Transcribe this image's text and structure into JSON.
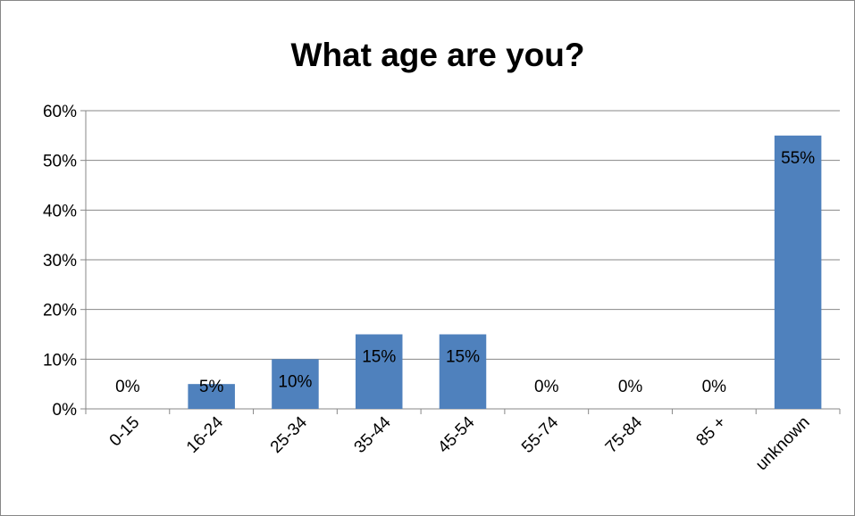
{
  "chart_data": {
    "type": "bar",
    "title": "What age are you?",
    "xlabel": "",
    "ylabel": "",
    "categories": [
      "0-15",
      "16-24",
      "25-34",
      "35-44",
      "45-54",
      "55-74",
      "75-84",
      "85 +",
      "unknown"
    ],
    "values": [
      0,
      5,
      10,
      15,
      15,
      0,
      0,
      0,
      55
    ],
    "data_labels": [
      "0%",
      "5%",
      "10%",
      "15%",
      "15%",
      "0%",
      "0%",
      "0%",
      "55%"
    ],
    "y_ticks": [
      0,
      10,
      20,
      30,
      40,
      50,
      60
    ],
    "y_tick_labels": [
      "0%",
      "10%",
      "20%",
      "30%",
      "40%",
      "50%",
      "60%"
    ],
    "ylim": [
      0,
      60
    ],
    "grid": true,
    "legend": "none",
    "colors": {
      "bar": "#4F81BD",
      "grid": "#878787"
    }
  }
}
